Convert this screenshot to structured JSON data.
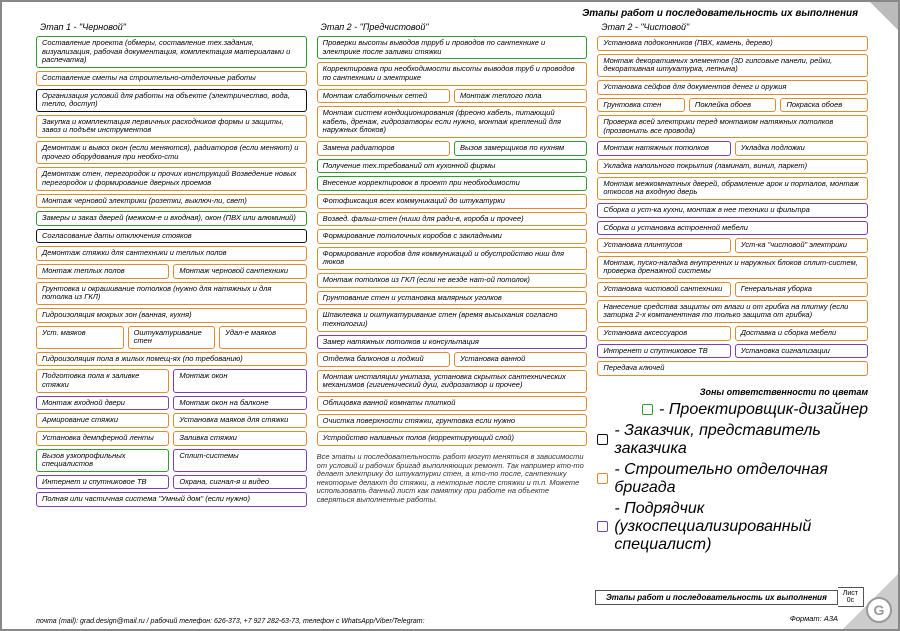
{
  "colors": {
    "green": "#2e9b2e",
    "orange": "#e28b2d",
    "black": "#111111",
    "purple": "#7a3fb5",
    "gray": "#888888"
  },
  "title": "Этапы работ и последовательность их\nвыполнения",
  "columns": [
    {
      "head": "Этап 1 - \"Черновой\"",
      "rows": [
        [
          {
            "t": "Составление проекта (обмеры, составление тех.задания, визуализация, рабочая документация, комплектация материалами и распечатка)",
            "c": "green"
          }
        ],
        [
          {
            "t": "Составление сметы на строительно-отделочные работы",
            "c": "orange"
          }
        ],
        [
          {
            "t": "Организация условий для работы на объекте (электричество, вода, тепло, доступ)",
            "c": "black"
          }
        ],
        [
          {
            "t": "Закупка и комплектация первичных расходников формы и защиты, завоз и подъём инструментов",
            "c": "orange"
          }
        ],
        [
          {
            "t": "Демонтаж и вывоз окон (если меняются), радиаторов (если меняют) и прочего оборудования при необхо-сти",
            "c": "orange"
          }
        ],
        [
          {
            "t": "Демонтаж стен, перегородок и прочих конструкций Возведение новых перегородок и формирование дверных проемов",
            "c": "orange"
          }
        ],
        [
          {
            "t": "Монтаж черновой электрики (розетки, выключ-ли, свет)",
            "c": "orange"
          }
        ],
        [
          {
            "t": "Замеры и заказ дверей (межком-е и входная), окон (ПВХ или алюминий)",
            "c": "green"
          }
        ],
        [
          {
            "t": "Согласование даты отключения стояков",
            "c": "black"
          }
        ],
        [
          {
            "t": "Демонтаж стяжки для сантехники и теплых полов",
            "c": "orange"
          }
        ],
        [
          {
            "t": "Монтаж теплых полов",
            "c": "orange"
          },
          {
            "t": "Монтаж черновой сантехники",
            "c": "orange"
          }
        ],
        [
          {
            "t": "Грунтовка и окрашивание потолков (нужно для натяжных и для потолка из ГКЛ)",
            "c": "orange"
          }
        ],
        [
          {
            "t": "Гидроизоляция мокрых зон (ванная, кухня)",
            "c": "orange"
          }
        ],
        [
          {
            "t": "Уст. маяков",
            "c": "orange"
          },
          {
            "t": "Оштукатуривание стен",
            "c": "orange"
          },
          {
            "t": "Удал-е маяков",
            "c": "orange"
          }
        ],
        [
          {
            "t": "Гидроизоляция пола в жилых помещ-ях (по требованию)",
            "c": "orange"
          }
        ],
        [
          {
            "t": "Подготовка пола к заливке стяжки",
            "c": "orange"
          },
          {
            "t": "Монтаж окон",
            "c": "purple"
          }
        ],
        [
          {
            "t": "Монтаж входной двери",
            "c": "purple"
          },
          {
            "t": "Монтаж окон на балконе",
            "c": "purple"
          }
        ],
        [
          {
            "t": "Армирование стяжки",
            "c": "orange"
          },
          {
            "t": "Установка маяков для стяжки",
            "c": "orange"
          }
        ],
        [
          {
            "t": "Установка демпферной ленты",
            "c": "orange"
          },
          {
            "t": "Заливка стяжки",
            "c": "orange"
          }
        ],
        [
          {
            "t": "Вызов узкопрофильных специалистов",
            "c": "green"
          },
          {
            "t": "Сплит-системы",
            "c": "purple"
          }
        ],
        [
          {
            "t": "Интернет и спутниковое ТВ",
            "c": "purple"
          },
          {
            "t": "Охрана, сигнал-я и видео",
            "c": "purple"
          }
        ],
        [
          {
            "t": "Полная или частичная система \"Умный дом\" (если нужно)",
            "c": "purple"
          }
        ]
      ]
    },
    {
      "head": "Этап 2 - \"Предчистовой\"",
      "rows": [
        [
          {
            "t": "Проверки высоты выводов трруб и проводов по сантехнике и электрике после заливки стяжки",
            "c": "green"
          }
        ],
        [
          {
            "t": "Корректировка при необходимости высоты выводов труб и проводов по сантехники и электрике",
            "c": "orange"
          }
        ],
        [
          {
            "t": "Монтаж слаботочных сетей",
            "c": "orange"
          },
          {
            "t": "Монтаж теплого пола",
            "c": "orange"
          }
        ],
        [
          {
            "t": "Монтаж систем кондиционирования (фреоно кабель, питающий кабель, дренаж, гидрозатворы если нужно, монтаж креплений для наружных блоков)",
            "c": "orange"
          }
        ],
        [
          {
            "t": "Замена радиаторов",
            "c": "orange"
          },
          {
            "t": "Вызов замерщиков по кухням",
            "c": "green"
          }
        ],
        [
          {
            "t": "Получение тех.требований от кухонной фирмы",
            "c": "green"
          }
        ],
        [
          {
            "t": "Внесение корректировок в проект при необходимости",
            "c": "green"
          }
        ],
        [
          {
            "t": "Фотофиксация всех коммуникаций до штукатурки",
            "c": "orange"
          }
        ],
        [
          {
            "t": "Возвед. фальш-стен (ниши для ради-в, короба и прочее)",
            "c": "orange"
          }
        ],
        [
          {
            "t": "Формирование потолочных коробов с закладными",
            "c": "orange"
          }
        ],
        [
          {
            "t": "Формирование коробов для коммуникаций и обустройство ниш для люков",
            "c": "orange"
          }
        ],
        [
          {
            "t": "Монтаж потолков из ГКЛ (если не везде нат-ой потолок)",
            "c": "orange"
          }
        ],
        [
          {
            "t": "Грунтование стен и установка малярных уголков",
            "c": "orange"
          }
        ],
        [
          {
            "t": "Шпаклевка и оштукатуривание стен (время высыхания согласно технологии)",
            "c": "orange"
          }
        ],
        [
          {
            "t": "Замер натяжных потолков и консультация",
            "c": "purple"
          }
        ],
        [
          {
            "t": "Отделка балконов и лоджий",
            "c": "orange"
          },
          {
            "t": "Установка ванной",
            "c": "orange"
          }
        ],
        [
          {
            "t": "Монтаж инсталяции унитаза, установка скрытых сантехнических механизмов (гигиенический душ, гидрозатвор и прочее)",
            "c": "orange"
          }
        ],
        [
          {
            "t": "Облицовка ванной комнаты плиткой",
            "c": "orange"
          }
        ],
        [
          {
            "t": "Очистка поверхности стяжки, грунтовка если нужно",
            "c": "orange"
          }
        ],
        [
          {
            "t": "Устройство наливных полов (корректирующий слой)",
            "c": "orange"
          }
        ]
      ],
      "note": "Все этапы и последовательность работ могут меняться в зависимости от условий и рабочих бригад выполняющих ремонт. Так например кто-то делает электрику до штукатурки стен, а кто-то после, сантехнику некоторые делают до стяжки, а некторые после стяжки и т.п. Можете использовать данный лист как памятку при работе на объекте сверяться выполненные работы."
    },
    {
      "head": "Этап 2 - \"Чистовой\"",
      "rows": [
        [
          {
            "t": "Установка подоконников (ПВХ, камень, дерево)",
            "c": "orange"
          }
        ],
        [
          {
            "t": "Монтаж декоративных элементов (3D гипсовые панели, рейки, декоративная штукатурка, лепнина)",
            "c": "orange"
          }
        ],
        [
          {
            "t": "Установка сейфов для документов денег и оружия",
            "c": "orange"
          }
        ],
        [
          {
            "t": "Грунтовка стен",
            "c": "orange"
          },
          {
            "t": "Поклейка обоев",
            "c": "orange"
          },
          {
            "t": "Покраска обоев",
            "c": "orange"
          }
        ],
        [
          {
            "t": "Проверка всей электрики перед монтажом натяжных потолков (прозвонить все провода)",
            "c": "orange"
          }
        ],
        [
          {
            "t": "Монтаж натяжных потолков",
            "c": "purple"
          },
          {
            "t": "Укладка подложки",
            "c": "orange"
          }
        ],
        [
          {
            "t": "Укладка напольного покрытия (ламинат, винил, паркет)",
            "c": "orange"
          }
        ],
        [
          {
            "t": "Монтаж межкомнатных дверей, обрамление арок и порталов, монтаж откосов на входную дверь",
            "c": "orange"
          }
        ],
        [
          {
            "t": "Сборка и уст-ка кухни, монтаж в нее техники и фильтра",
            "c": "purple"
          }
        ],
        [
          {
            "t": "Сборка и установка встроенной мебели",
            "c": "purple"
          }
        ],
        [
          {
            "t": "Установка плинтусов",
            "c": "orange"
          },
          {
            "t": "Уст-ка \"чистовой\" электрики",
            "c": "orange"
          }
        ],
        [
          {
            "t": "Монтаж, пуско-наладка внутренних и наружных блоков сплит-систем, проверка дренажной системы",
            "c": "orange"
          }
        ],
        [
          {
            "t": "Установка чистовой сантехники",
            "c": "orange"
          },
          {
            "t": "Генеральная уборка",
            "c": "orange"
          }
        ],
        [
          {
            "t": "Нанесение средства защиты от влаги и от грибка на плитку (если затирка 2-х компанентная то только защита от грибка)",
            "c": "orange"
          }
        ],
        [
          {
            "t": "Установка аксессуаров",
            "c": "orange"
          },
          {
            "t": "Доставка и сборка мебели",
            "c": "orange"
          }
        ],
        [
          {
            "t": "Интренет и спутниковое ТВ",
            "c": "purple"
          },
          {
            "t": "Установка сигнализации",
            "c": "purple"
          }
        ],
        [
          {
            "t": "Передача ключей",
            "c": "orange"
          }
        ]
      ],
      "legend": {
        "title": "Зоны ответственности по цветам",
        "items": [
          {
            "c": "green",
            "t": "- Проектировщик-дизайнер"
          },
          {
            "c": "black",
            "t": "- Заказчик, представитель заказчика"
          },
          {
            "c": "orange",
            "t": "- Строительно отделочная бригада"
          },
          {
            "c": "purple",
            "t": "- Подрядчик (узкоспециализированный специалист)"
          }
        ]
      }
    }
  ],
  "footer_contact": "почта (mail): grad.design@mail.ru / рабочий телефон: 626-373, +7 927 282-63-73, телефон с WhatsApp/Viber/Telegram:",
  "titleblock": {
    "main": "Этапы работ и последовательность их выполнения",
    "sheet_label": "Лист",
    "sheet_num": "0с"
  },
  "format": "Формат: А3А",
  "logo": "G"
}
